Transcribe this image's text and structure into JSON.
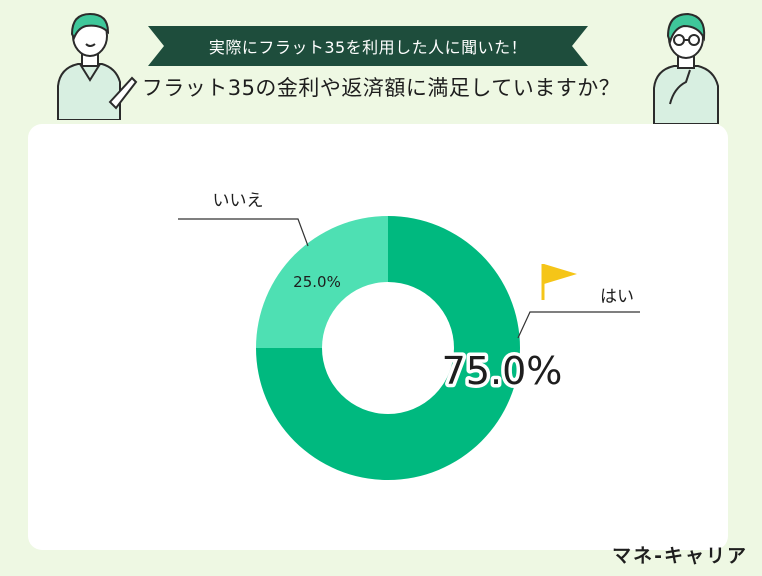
{
  "header": {
    "banner": "実際にフラット35を利用した人に聞いた！",
    "question": "フラット35の金利や返済額に満足していますか？"
  },
  "chart_data": {
    "type": "pie",
    "categories": [
      "はい",
      "いいえ"
    ],
    "values": [
      75.0,
      25.0
    ],
    "value_labels": [
      "75.0%",
      "25.0%"
    ],
    "colors": [
      "#00b97f",
      "#4ee0b3"
    ],
    "donut": true
  },
  "brand": "マネ-キャリア",
  "colors": {
    "background": "#eef8e3",
    "banner": "#1e4d3c",
    "accent": "#00b97f",
    "accent_light": "#4ee0b3",
    "flag": "#f5c518"
  },
  "icons": [
    "person-pointing-icon",
    "person-thinking-icon",
    "flag-icon"
  ]
}
